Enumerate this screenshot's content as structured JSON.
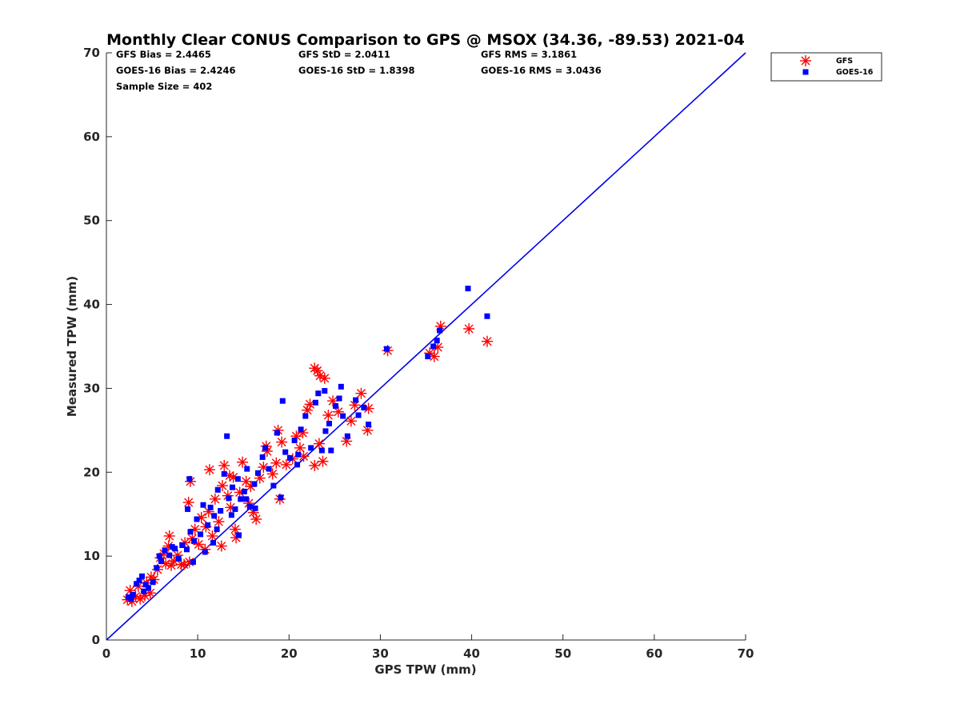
{
  "chart_data": {
    "type": "scatter",
    "title": "Monthly Clear CONUS Comparison to GPS @ MSOX (34.36, -89.53) 2021-04",
    "xlabel": "GPS TPW (mm)",
    "ylabel": "Measured TPW (mm)",
    "xlim": [
      0,
      70
    ],
    "ylim": [
      0,
      70
    ],
    "xticks": [
      "0",
      "10",
      "20",
      "30",
      "40",
      "50",
      "60",
      "70"
    ],
    "yticks": [
      "0",
      "10",
      "20",
      "30",
      "40",
      "50",
      "60",
      "70"
    ],
    "grid": false,
    "legend_position": "outside-top-right",
    "stats": {
      "gfs_bias": "GFS Bias = 2.4465",
      "goes_bias": "GOES-16 Bias = 2.4246",
      "sample_size": "Sample Size = 402",
      "gfs_std": "GFS StD = 2.0411",
      "goes_std": "GOES-16 StD = 1.8398",
      "gfs_rms": "GFS RMS = 3.1861",
      "goes_rms": "GOES-16 RMS = 3.0436"
    },
    "reference_line": {
      "x": [
        0,
        70
      ],
      "y": [
        0,
        70
      ],
      "color": "#0000ee"
    },
    "series": [
      {
        "name": "GFS",
        "marker": "asterisk",
        "color": "#ff0000",
        "points": [
          [
            2.3,
            4.8
          ],
          [
            2.8,
            4.6
          ],
          [
            3.2,
            5.2
          ],
          [
            3.7,
            4.9
          ],
          [
            4.2,
            5.3
          ],
          [
            4.8,
            5.6
          ],
          [
            2.6,
            5.9
          ],
          [
            3.5,
            6.4
          ],
          [
            4.4,
            6.8
          ],
          [
            4.9,
            7.5
          ],
          [
            5.6,
            8.4
          ],
          [
            5.9,
            9.8
          ],
          [
            6.3,
            10.3
          ],
          [
            6.8,
            11.2
          ],
          [
            6.9,
            12.4
          ],
          [
            7.4,
            9.4
          ],
          [
            7.8,
            10.1
          ],
          [
            8.2,
            9.0
          ],
          [
            8.6,
            11.6
          ],
          [
            9.1,
            9.3
          ],
          [
            9.4,
            12.1
          ],
          [
            9.7,
            13.2
          ],
          [
            10.1,
            11.4
          ],
          [
            10.4,
            14.6
          ],
          [
            10.9,
            13.5
          ],
          [
            11.2,
            15.3
          ],
          [
            11.6,
            12.4
          ],
          [
            11.9,
            16.8
          ],
          [
            12.3,
            14.1
          ],
          [
            12.7,
            18.4
          ],
          [
            12.9,
            20.8
          ],
          [
            13.3,
            17.2
          ],
          [
            13.6,
            15.8
          ],
          [
            13.9,
            19.4
          ],
          [
            14.2,
            12.2
          ],
          [
            14.6,
            17.6
          ],
          [
            14.9,
            21.2
          ],
          [
            15.3,
            18.9
          ],
          [
            15.6,
            16.3
          ],
          [
            16.1,
            15.2
          ],
          [
            16.4,
            14.4
          ],
          [
            16.8,
            19.3
          ],
          [
            17.2,
            20.6
          ],
          [
            17.6,
            22.5
          ],
          [
            18.2,
            19.8
          ],
          [
            18.6,
            21.1
          ],
          [
            18.8,
            25.0
          ],
          [
            19.2,
            23.6
          ],
          [
            19.0,
            16.8
          ],
          [
            19.7,
            20.9
          ],
          [
            20.4,
            21.6
          ],
          [
            21.2,
            22.9
          ],
          [
            21.5,
            24.7
          ],
          [
            22.0,
            27.4
          ],
          [
            22.3,
            28.1
          ],
          [
            22.8,
            20.8
          ],
          [
            23.1,
            32.1
          ],
          [
            23.4,
            31.5
          ],
          [
            23.7,
            21.3
          ],
          [
            23.9,
            31.2
          ],
          [
            24.3,
            26.8
          ],
          [
            24.8,
            28.5
          ],
          [
            25.4,
            27.2
          ],
          [
            26.3,
            23.7
          ],
          [
            27.2,
            28.0
          ],
          [
            27.9,
            29.4
          ],
          [
            28.6,
            25.0
          ],
          [
            28.7,
            27.6
          ],
          [
            30.8,
            34.5
          ],
          [
            35.4,
            34.2
          ],
          [
            35.9,
            33.8
          ],
          [
            36.3,
            34.9
          ],
          [
            36.6,
            37.4
          ],
          [
            39.7,
            37.1
          ],
          [
            41.7,
            35.6
          ],
          [
            9.0,
            16.4
          ],
          [
            9.2,
            18.9
          ],
          [
            11.3,
            20.3
          ],
          [
            6.5,
            9.1
          ],
          [
            7.1,
            8.9
          ],
          [
            8.5,
            9.0
          ],
          [
            5.2,
            7.2
          ],
          [
            10.8,
            10.8
          ],
          [
            12.6,
            11.2
          ],
          [
            14.1,
            13.2
          ],
          [
            15.8,
            18.3
          ],
          [
            17.5,
            23.1
          ],
          [
            20.8,
            24.3
          ],
          [
            23.3,
            23.4
          ],
          [
            21.6,
            21.9
          ],
          [
            22.8,
            32.4
          ],
          [
            26.8,
            26.1
          ],
          [
            13.5,
            19.6
          ]
        ]
      },
      {
        "name": "GOES-16",
        "marker": "square",
        "color": "#0000ff",
        "points": [
          [
            2.4,
            5.1
          ],
          [
            2.9,
            5.4
          ],
          [
            3.3,
            6.7
          ],
          [
            3.6,
            7.1
          ],
          [
            4.1,
            5.8
          ],
          [
            4.6,
            6.2
          ],
          [
            2.7,
            4.9
          ],
          [
            3.9,
            7.6
          ],
          [
            4.3,
            6.6
          ],
          [
            5.1,
            6.9
          ],
          [
            5.5,
            8.6
          ],
          [
            6.0,
            9.4
          ],
          [
            6.4,
            10.7
          ],
          [
            6.9,
            10.1
          ],
          [
            7.5,
            10.9
          ],
          [
            7.9,
            9.7
          ],
          [
            8.3,
            11.3
          ],
          [
            8.8,
            10.8
          ],
          [
            9.2,
            12.9
          ],
          [
            9.6,
            11.8
          ],
          [
            9.9,
            14.4
          ],
          [
            10.3,
            12.6
          ],
          [
            10.6,
            16.1
          ],
          [
            11.1,
            13.7
          ],
          [
            11.4,
            15.8
          ],
          [
            11.8,
            14.8
          ],
          [
            12.2,
            17.9
          ],
          [
            12.5,
            15.4
          ],
          [
            12.9,
            19.8
          ],
          [
            13.2,
            24.3
          ],
          [
            13.4,
            16.9
          ],
          [
            13.8,
            18.2
          ],
          [
            14.1,
            15.6
          ],
          [
            14.4,
            19.2
          ],
          [
            14.7,
            16.8
          ],
          [
            15.1,
            17.7
          ],
          [
            15.4,
            20.4
          ],
          [
            15.7,
            15.9
          ],
          [
            16.2,
            18.6
          ],
          [
            16.6,
            19.9
          ],
          [
            17.1,
            21.8
          ],
          [
            17.4,
            22.9
          ],
          [
            17.8,
            20.4
          ],
          [
            18.3,
            18.4
          ],
          [
            18.7,
            24.7
          ],
          [
            19.1,
            17.0
          ],
          [
            19.3,
            28.5
          ],
          [
            19.6,
            22.4
          ],
          [
            20.1,
            21.7
          ],
          [
            20.6,
            23.8
          ],
          [
            21.3,
            25.1
          ],
          [
            21.8,
            26.7
          ],
          [
            22.4,
            22.9
          ],
          [
            22.9,
            28.3
          ],
          [
            23.2,
            29.4
          ],
          [
            23.6,
            22.6
          ],
          [
            23.9,
            29.7
          ],
          [
            24.4,
            25.8
          ],
          [
            24.6,
            22.6
          ],
          [
            25.1,
            27.9
          ],
          [
            25.7,
            30.2
          ],
          [
            25.9,
            26.7
          ],
          [
            26.4,
            24.3
          ],
          [
            27.3,
            28.6
          ],
          [
            27.6,
            26.8
          ],
          [
            28.2,
            27.7
          ],
          [
            28.7,
            25.7
          ],
          [
            30.7,
            34.7
          ],
          [
            35.2,
            33.8
          ],
          [
            35.8,
            35.0
          ],
          [
            36.2,
            35.7
          ],
          [
            36.5,
            36.9
          ],
          [
            39.6,
            41.9
          ],
          [
            41.7,
            38.6
          ],
          [
            9.1,
            19.2
          ],
          [
            8.9,
            15.6
          ],
          [
            10.8,
            10.5
          ],
          [
            12.1,
            13.2
          ],
          [
            13.7,
            14.9
          ],
          [
            15.3,
            16.8
          ],
          [
            11.7,
            11.6
          ],
          [
            14.5,
            12.5
          ],
          [
            16.3,
            15.7
          ],
          [
            21.0,
            22.1
          ],
          [
            24.0,
            24.9
          ],
          [
            25.5,
            28.8
          ],
          [
            20.9,
            20.9
          ],
          [
            7.2,
            11.1
          ],
          [
            5.8,
            10.0
          ],
          [
            9.5,
            9.3
          ]
        ]
      }
    ]
  }
}
